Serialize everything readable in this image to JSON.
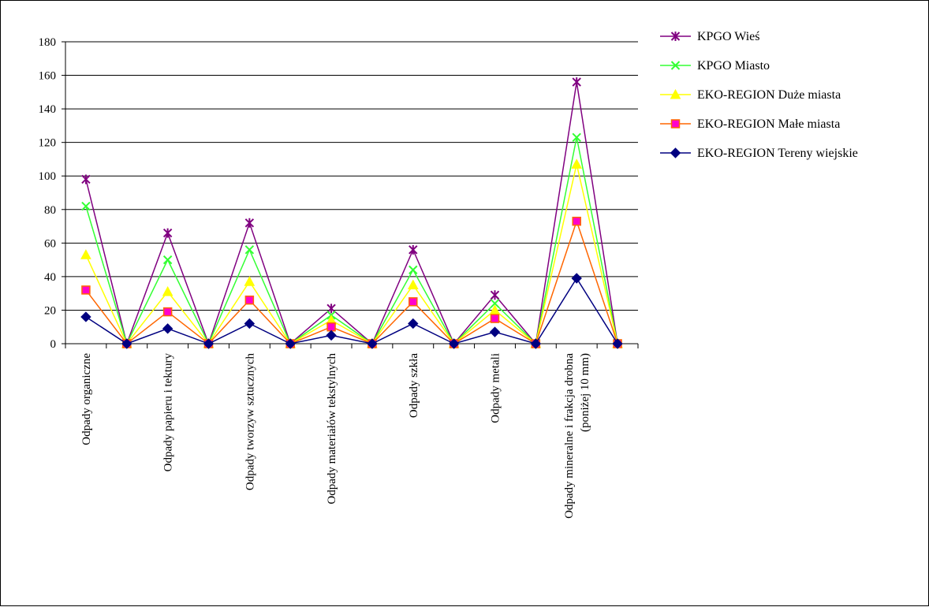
{
  "chart_data": {
    "type": "line",
    "title": "",
    "xlabel": "",
    "ylabel": "",
    "ylim": [
      0,
      180
    ],
    "yticks": [
      0,
      20,
      40,
      60,
      80,
      100,
      120,
      140,
      160,
      180
    ],
    "grid": "horizontal",
    "legend": "right",
    "categories": [
      [
        "Odpady organiczne"
      ],
      [
        ""
      ],
      [
        "Odpady papieru i tektury"
      ],
      [
        ""
      ],
      [
        "Odpady tworzyw sztucznych"
      ],
      [
        ""
      ],
      [
        "Odpady materiałów tekstylnych"
      ],
      [
        ""
      ],
      [
        "Odpady szkła"
      ],
      [
        ""
      ],
      [
        "Odpady metali"
      ],
      [
        ""
      ],
      [
        "Odpady mineralne i frakcja drobna",
        "(poniżej 10 mm)"
      ],
      [
        ""
      ]
    ],
    "series": [
      {
        "name": "KPGO Wieś",
        "color": "#800080",
        "marker": "asterisk",
        "values": [
          98,
          0,
          66,
          0,
          72,
          0,
          21,
          0,
          56,
          0,
          29,
          0,
          156,
          0
        ]
      },
      {
        "name": "KPGO Miasto",
        "color": "#33ff33",
        "marker": "x",
        "values": [
          82,
          0,
          50,
          0,
          56,
          0,
          17,
          0,
          44,
          0,
          24,
          0,
          123,
          0
        ]
      },
      {
        "name": "EKO-REGION Duże miasta",
        "color": "#ffff00",
        "marker": "triangle",
        "values": [
          53,
          0,
          31,
          0,
          37,
          0,
          14,
          0,
          35,
          0,
          20,
          0,
          107,
          0
        ]
      },
      {
        "name": "EKO-REGION Małe miasta",
        "color": "#ff6600",
        "marker": "square",
        "marker_fill": "#ff00cc",
        "values": [
          32,
          0,
          19,
          0,
          26,
          0,
          10,
          0,
          25,
          0,
          15,
          0,
          73,
          0
        ]
      },
      {
        "name": "EKO-REGION Tereny wiejskie",
        "color": "#000080",
        "marker": "diamond",
        "values": [
          16,
          0,
          9,
          0,
          12,
          0,
          5,
          0,
          12,
          0,
          7,
          0,
          39,
          0
        ]
      }
    ]
  }
}
